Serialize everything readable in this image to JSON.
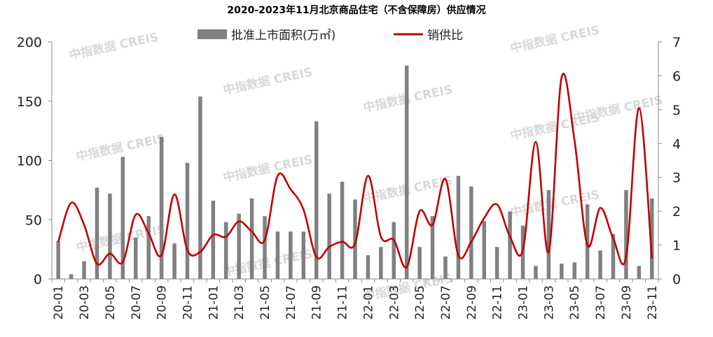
{
  "chart_data": {
    "type": "bar+line",
    "title": "2020-2023年11月北京商品住宅（不含保障房）供应情况",
    "watermark": "中指数据 CREIS",
    "categories": [
      "20-01",
      "20-02",
      "20-03",
      "20-04",
      "20-05",
      "20-06",
      "20-07",
      "20-08",
      "20-09",
      "20-10",
      "20-11",
      "20-12",
      "21-01",
      "21-02",
      "21-03",
      "21-04",
      "21-05",
      "21-06",
      "21-07",
      "21-08",
      "21-09",
      "21-10",
      "21-11",
      "21-12",
      "22-01",
      "22-02",
      "22-03",
      "22-04",
      "22-05",
      "22-06",
      "22-07",
      "22-08",
      "22-09",
      "22-10",
      "22-11",
      "22-12",
      "23-01",
      "23-02",
      "23-03",
      "23-04",
      "23-05",
      "23-06",
      "23-07",
      "23-08",
      "23-09",
      "23-10",
      "23-11"
    ],
    "xtick_labels": [
      "20-01",
      "20-03",
      "20-05",
      "20-07",
      "20-09",
      "20-11",
      "21-01",
      "21-03",
      "21-05",
      "21-07",
      "21-09",
      "21-11",
      "22-01",
      "22-03",
      "22-05",
      "22-07",
      "22-09",
      "22-11",
      "23-01",
      "23-03",
      "23-05",
      "23-07",
      "23-09",
      "23-11"
    ],
    "series": [
      {
        "name": "批准上市面积(万㎡)",
        "type": "bar",
        "axis": "left",
        "color": "#808080",
        "values": [
          32,
          4,
          15,
          77,
          72,
          103,
          35,
          53,
          120,
          30,
          98,
          154,
          66,
          48,
          55,
          68,
          53,
          40,
          40,
          40,
          133,
          72,
          82,
          67,
          20,
          27,
          48,
          180,
          27,
          53,
          19,
          87,
          78,
          49,
          27,
          57,
          45,
          11,
          75,
          13,
          14,
          63,
          24,
          38,
          75,
          11,
          68
        ]
      },
      {
        "name": "销供比",
        "type": "line",
        "axis": "right",
        "color": "#c00000",
        "values": [
          1.1,
          2.25,
          1.6,
          0.45,
          0.75,
          0.5,
          1.9,
          1.35,
          0.7,
          2.5,
          0.85,
          0.8,
          1.3,
          1.25,
          1.7,
          1.4,
          1.15,
          3.05,
          2.65,
          2.05,
          0.65,
          0.95,
          1.1,
          1.05,
          3.05,
          1.25,
          1.15,
          0.35,
          2.0,
          1.6,
          2.95,
          0.7,
          1.1,
          1.8,
          2.2,
          1.25,
          0.85,
          4.05,
          0.8,
          5.95,
          4.1,
          1.0,
          2.1,
          1.2,
          0.65,
          5.05,
          0.6
        ]
      }
    ],
    "y_left": {
      "min": 0,
      "max": 200,
      "ticks": [
        0,
        50,
        100,
        150,
        200
      ]
    },
    "y_right": {
      "min": 0,
      "max": 7,
      "ticks": [
        0,
        1,
        2,
        3,
        4,
        5,
        6,
        7
      ]
    },
    "legend_placement": "top-center",
    "grid": false
  }
}
